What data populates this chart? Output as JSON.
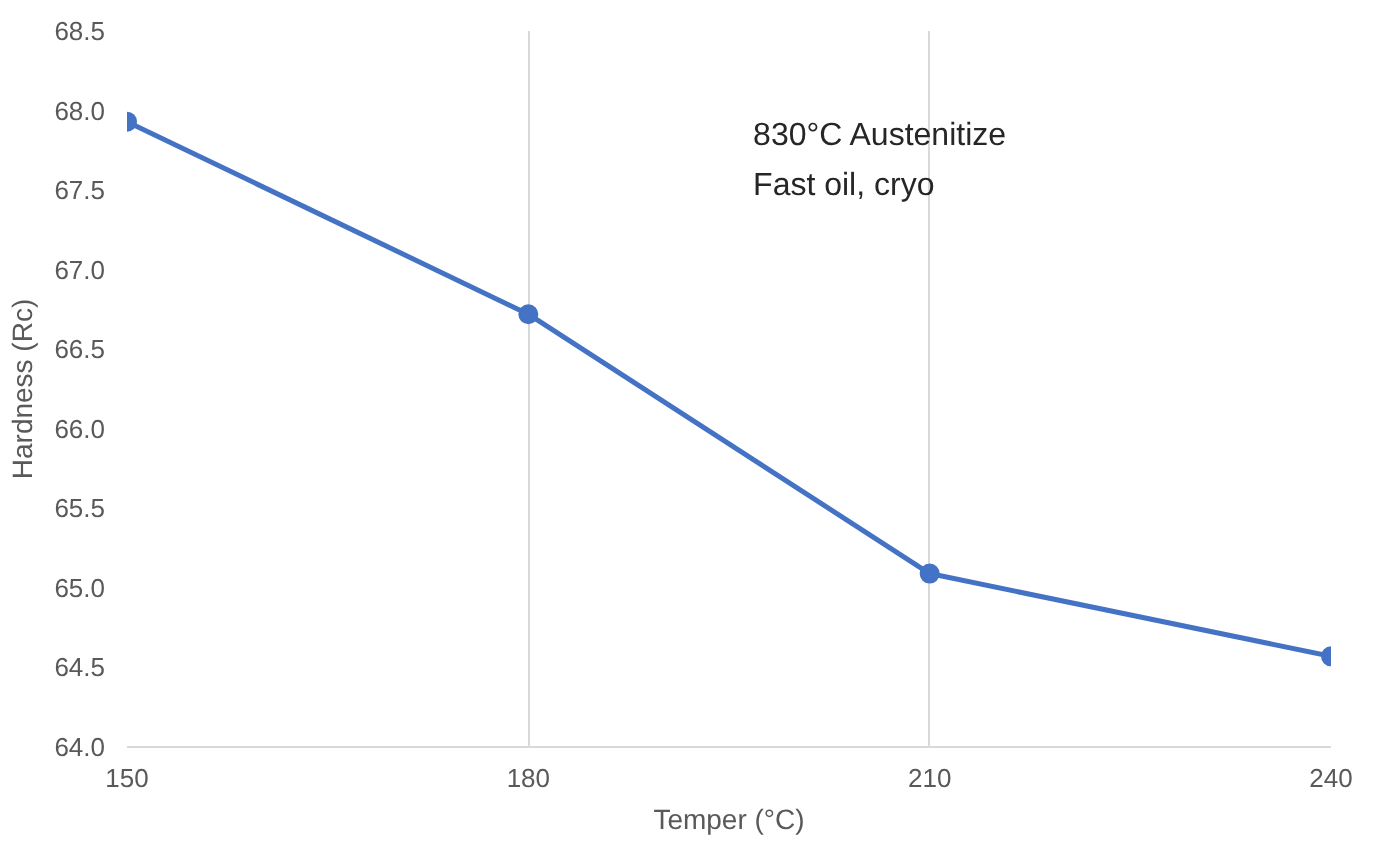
{
  "chart_data": {
    "type": "line",
    "xlabel": "Temper (°C)",
    "ylabel": "Hardness (Rc)",
    "x": [
      150,
      180,
      210,
      240
    ],
    "series": [
      {
        "color": "#4472c4",
        "values": [
          67.93,
          66.72,
          65.09,
          64.57
        ]
      }
    ],
    "xlim": [
      150,
      240
    ],
    "xticks": [
      150,
      180,
      210,
      240
    ],
    "ylim": [
      64.0,
      68.5
    ],
    "yticks": [
      {
        "value": 64.0,
        "label": "64.0"
      },
      {
        "value": 64.5,
        "label": "64.5"
      },
      {
        "value": 65.0,
        "label": "65.0"
      },
      {
        "value": 65.5,
        "label": "65.5"
      },
      {
        "value": 66.0,
        "label": "66.0"
      },
      {
        "value": 66.5,
        "label": "66.5"
      },
      {
        "value": 67.0,
        "label": "67.0"
      },
      {
        "value": 67.5,
        "label": "67.5"
      },
      {
        "value": 68.0,
        "label": "68.0"
      },
      {
        "value": 68.5,
        "label": "68.5"
      }
    ],
    "grid": "x",
    "marker": "circle",
    "line_style": "solid",
    "annotations": [
      "830°C Austenitize",
      "Fast oil, cryo"
    ]
  }
}
